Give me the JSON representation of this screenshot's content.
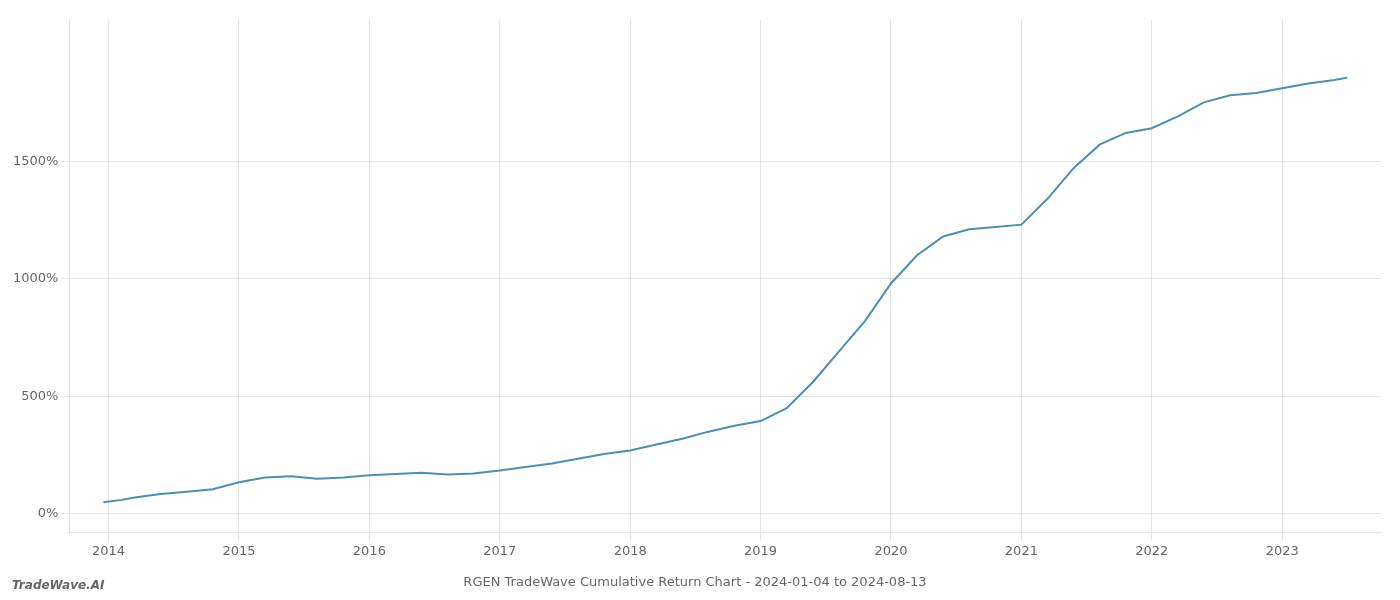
{
  "chart_data": {
    "type": "line",
    "title": "RGEN TradeWave Cumulative Return Chart - 2024-01-04 to 2024-08-13",
    "annotations": [
      "TradeWave.AI"
    ],
    "x": [
      2013.96,
      2014.1,
      2014.2,
      2014.4,
      2014.6,
      2014.8,
      2015.0,
      2015.2,
      2015.4,
      2015.6,
      2015.8,
      2016.0,
      2016.2,
      2016.4,
      2016.6,
      2016.8,
      2017.0,
      2017.2,
      2017.4,
      2017.6,
      2017.8,
      2018.0,
      2018.2,
      2018.4,
      2018.6,
      2018.8,
      2019.0,
      2019.2,
      2019.4,
      2019.6,
      2019.8,
      2020.0,
      2020.2,
      2020.4,
      2020.6,
      2020.8,
      2021.0,
      2021.2,
      2021.4,
      2021.6,
      2021.8,
      2022.0,
      2022.2,
      2022.4,
      2022.6,
      2022.8,
      2023.0,
      2023.2,
      2023.4,
      2023.5
    ],
    "values": [
      50,
      60,
      70,
      85,
      95,
      105,
      135,
      155,
      160,
      150,
      155,
      165,
      170,
      175,
      168,
      172,
      185,
      200,
      215,
      235,
      255,
      270,
      295,
      320,
      350,
      375,
      395,
      450,
      560,
      690,
      820,
      980,
      1100,
      1180,
      1210,
      1220,
      1230,
      1340,
      1470,
      1570,
      1620,
      1640,
      1690,
      1750,
      1780,
      1790,
      1810,
      1830,
      1845,
      1855
    ],
    "color": "#4a8fb5",
    "xlim": [
      2013.7,
      2023.75
    ],
    "xticks": [
      2014,
      2015,
      2016,
      2017,
      2018,
      2019,
      2020,
      2021,
      2022,
      2023
    ],
    "ylim": [
      -80,
      2100
    ],
    "yticks": [
      {
        "value": 0,
        "label": "0%"
      },
      {
        "value": 500,
        "label": "500%"
      },
      {
        "value": 1000,
        "label": "1000%"
      },
      {
        "value": 1500,
        "label": "1500%"
      }
    ],
    "grid": true
  }
}
